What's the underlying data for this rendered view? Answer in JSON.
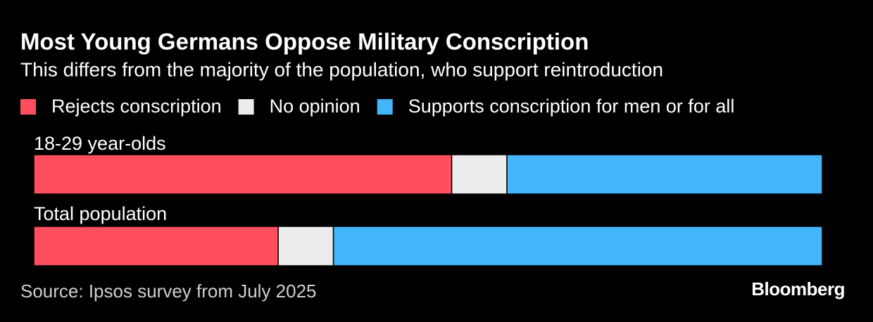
{
  "chart_data": {
    "type": "bar",
    "orientation": "horizontal",
    "stacked": true,
    "title": "Most Young Germans Oppose Military Conscription",
    "subtitle": "This differs from the majority of the population, who support reintroduction",
    "categories": [
      "18-29 year-olds",
      "Total population"
    ],
    "series": [
      {
        "name": "Rejects conscription",
        "color": "#ff4f5e",
        "values": [
          53,
          31
        ]
      },
      {
        "name": "No opinion",
        "color": "#ececec",
        "values": [
          7,
          7
        ]
      },
      {
        "name": "Supports conscription for men or for all",
        "color": "#44b5fa",
        "values": [
          40,
          62
        ]
      }
    ],
    "source": "Source: Ipsos survey from July 2025",
    "brand": "Bloomberg"
  }
}
